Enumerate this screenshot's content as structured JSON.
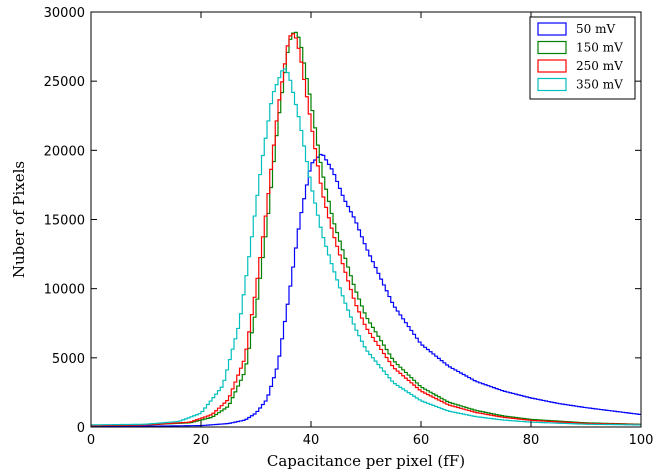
{
  "chart_data": {
    "type": "line",
    "style": "step-histogram",
    "title": "",
    "xlabel": "Capacitance per pixel (fF)",
    "ylabel": "Nuber of Pixels",
    "xlim": [
      0,
      100
    ],
    "ylim": [
      0,
      30000
    ],
    "xticks": [
      0,
      20,
      40,
      60,
      80,
      100
    ],
    "yticks": [
      0,
      5000,
      10000,
      15000,
      20000,
      25000,
      30000
    ],
    "grid": false,
    "legend_position": "top-right",
    "series": [
      {
        "name": "50 mV",
        "color": "#0000ff",
        "x": [
          0,
          10,
          20,
          25,
          28,
          30,
          32,
          34,
          36,
          38,
          40,
          42,
          44,
          46,
          48,
          50,
          55,
          60,
          65,
          70,
          75,
          80,
          85,
          90,
          95,
          100
        ],
        "y": [
          50,
          60,
          100,
          250,
          500,
          1000,
          2000,
          4500,
          9500,
          15000,
          19000,
          19800,
          18500,
          16500,
          15000,
          13000,
          8800,
          6000,
          4400,
          3300,
          2600,
          2100,
          1700,
          1400,
          1150,
          900
        ]
      },
      {
        "name": "150 mV",
        "color": "#008000",
        "x": [
          0,
          10,
          18,
          22,
          25,
          28,
          30,
          32,
          34,
          36,
          37,
          38,
          40,
          42,
          44,
          46,
          48,
          50,
          55,
          60,
          65,
          70,
          75,
          80,
          90,
          100
        ],
        "y": [
          100,
          150,
          300,
          700,
          1500,
          4000,
          8500,
          14500,
          22000,
          27800,
          28700,
          28000,
          23500,
          18500,
          15000,
          12500,
          10000,
          8000,
          4800,
          2900,
          1800,
          1200,
          800,
          550,
          300,
          200
        ]
      },
      {
        "name": "250 mV",
        "color": "#ff0000",
        "x": [
          0,
          10,
          18,
          22,
          25,
          28,
          30,
          32,
          34,
          36,
          37,
          38,
          40,
          42,
          44,
          46,
          48,
          50,
          55,
          60,
          65,
          70,
          75,
          80,
          90,
          100
        ],
        "y": [
          100,
          150,
          350,
          900,
          2000,
          5000,
          10000,
          16000,
          23000,
          28200,
          28500,
          27000,
          22000,
          17000,
          14000,
          11500,
          9000,
          7200,
          4300,
          2600,
          1600,
          1050,
          700,
          480,
          260,
          180
        ]
      },
      {
        "name": "350 mV",
        "color": "#00bfbf",
        "x": [
          0,
          10,
          16,
          20,
          24,
          27,
          29,
          31,
          33,
          35,
          36,
          38,
          40,
          42,
          44,
          46,
          48,
          50,
          55,
          60,
          65,
          70,
          75,
          80,
          90,
          100
        ],
        "y": [
          150,
          200,
          400,
          1000,
          3000,
          7500,
          13000,
          19000,
          24000,
          26000,
          25500,
          22000,
          17500,
          14000,
          11500,
          9200,
          7200,
          5600,
          3200,
          1900,
          1150,
          750,
          500,
          350,
          200,
          150
        ]
      }
    ]
  }
}
